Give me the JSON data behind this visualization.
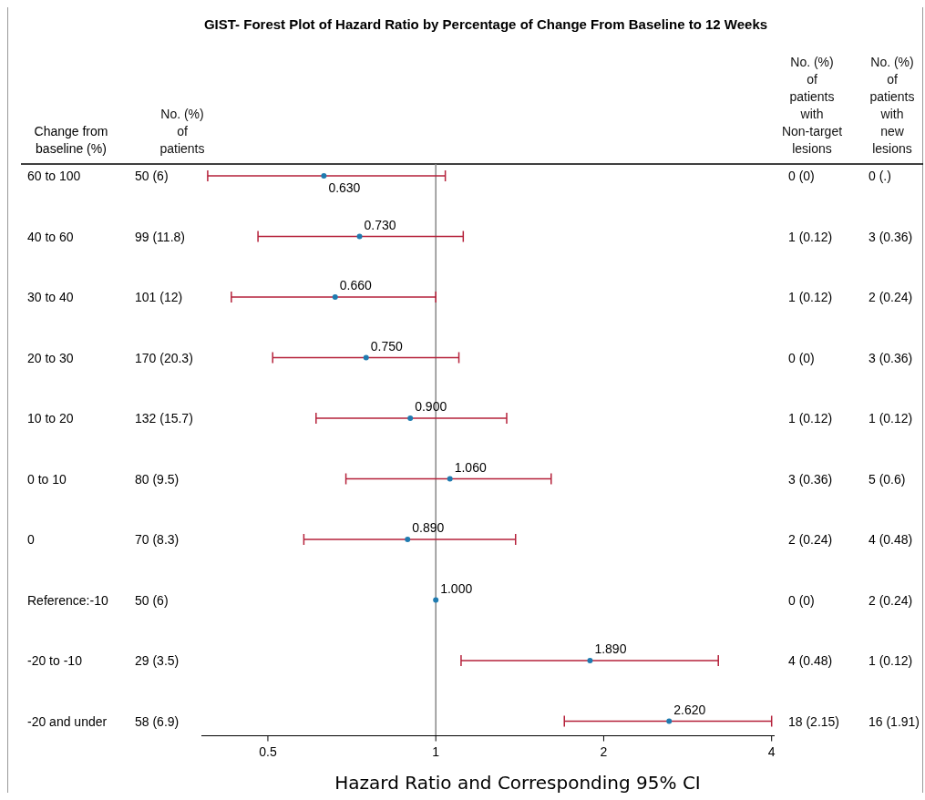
{
  "chart_data": {
    "type": "scatter",
    "orientation": "horizontal",
    "title": "GIST- Forest Plot of Hazard Ratio by Percentage of Change From Baseline to 12 Weeks",
    "xlabel": "Hazard Ratio and Corresponding 95% CI",
    "ylabel": "Change from baseline (%)",
    "categories": [
      "60 to 100",
      "40 to 60",
      "30 to 40",
      "20 to 30",
      "10 to 20",
      "0 to 10",
      "0",
      "Reference:-10",
      "-20 to -10",
      "-20 and under"
    ],
    "series": [
      {
        "color": "#1f7bb0",
        "values": [
          0.63,
          0.73,
          0.66,
          0.75,
          0.9,
          1.06,
          0.89,
          1.0,
          1.89,
          2.62
        ],
        "errors": [
          [
            0.39,
            1.04
          ],
          [
            0.48,
            1.12
          ],
          [
            0.43,
            1.0
          ],
          [
            0.51,
            1.1
          ],
          [
            0.61,
            1.34
          ],
          [
            0.69,
            1.61
          ],
          [
            0.58,
            1.39
          ],
          null,
          [
            1.11,
            3.21
          ],
          [
            1.7,
            4.0
          ]
        ],
        "value_labels": [
          "0.630",
          "0.730",
          "0.660",
          "0.750",
          "0.900",
          "1.060",
          "0.890",
          "1.000",
          "1.890",
          "2.620"
        ]
      }
    ],
    "log": "x",
    "xlim": [
      0.38,
      4.05
    ],
    "xticks": [
      0.5,
      1,
      2,
      4
    ],
    "marker": "circle",
    "grid": false,
    "ref_lines": [
      {
        "axis": "x",
        "value": 1,
        "color": "#888888"
      }
    ],
    "annotations": [
      "No. (%) of patients",
      "No. (%) of patients with Non-target lesions",
      "No. (%) of patients with new lesions",
      "50 (6)",
      "0 (0)",
      "0 (.)",
      "99 (11.8)",
      "1 (0.12)",
      "3 (0.36)",
      "101 (12)",
      "1 (0.12)",
      "2 (0.24)",
      "170 (20.3)",
      "0 (0)",
      "3 (0.36)",
      "132 (15.7)",
      "1 (0.12)",
      "1 (0.12)",
      "80 (9.5)",
      "3 (0.36)",
      "5 (0.6)",
      "70 (8.3)",
      "2 (0.24)",
      "4 (0.48)",
      "50 (6)",
      "0 (0)",
      "2 (0.24)",
      "29 (3.5)",
      "4 (0.48)",
      "1 (0.12)",
      "58 (6.9)",
      "18 (2.15)",
      "16 (1.91)"
    ]
  }
}
